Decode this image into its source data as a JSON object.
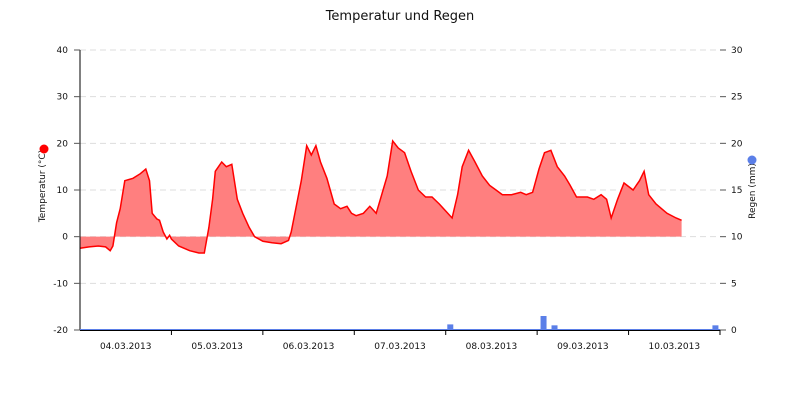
{
  "chart_data": {
    "type": "area",
    "title": "Temperatur und Regen",
    "xlabel": "",
    "x_categories": [
      "04.03.2013",
      "05.03.2013",
      "06.03.2013",
      "07.03.2013",
      "08.03.2013",
      "09.03.2013",
      "10.03.2013"
    ],
    "y_left": {
      "label": "Temperatur (°C)",
      "ticks": [
        40,
        30,
        20,
        10,
        0,
        -10,
        -20
      ],
      "range": [
        -20,
        40
      ],
      "legend_color": "#ff0000"
    },
    "y_right": {
      "label": "Regen (mm)",
      "ticks": [
        30,
        25,
        20,
        15,
        10,
        5,
        0
      ],
      "range": [
        0,
        30
      ],
      "legend_color": "#5b7fe8"
    },
    "grid": true,
    "series": [
      {
        "name": "Temperatur (°C)",
        "type": "area",
        "color": "#ff0000",
        "fill": "#ff7f7f",
        "axis": "left",
        "points_day_temp": [
          [
            0.0,
            -2.5
          ],
          [
            0.1,
            -2.2
          ],
          [
            0.2,
            -2.0
          ],
          [
            0.28,
            -2.2
          ],
          [
            0.33,
            -3.0
          ],
          [
            0.36,
            -2.0
          ],
          [
            0.4,
            3.0
          ],
          [
            0.44,
            6.0
          ],
          [
            0.49,
            12.0
          ],
          [
            0.58,
            12.5
          ],
          [
            0.66,
            13.5
          ],
          [
            0.72,
            14.5
          ],
          [
            0.76,
            12.0
          ],
          [
            0.79,
            5.0
          ],
          [
            0.84,
            3.8
          ],
          [
            0.87,
            3.5
          ],
          [
            0.91,
            1.0
          ],
          [
            0.95,
            -0.5
          ],
          [
            0.98,
            0.3
          ],
          [
            1.0,
            -0.5
          ],
          [
            1.08,
            -2.0
          ],
          [
            1.2,
            -3.0
          ],
          [
            1.3,
            -3.5
          ],
          [
            1.36,
            -3.5
          ],
          [
            1.41,
            2.0
          ],
          [
            1.45,
            8.0
          ],
          [
            1.48,
            14.0
          ],
          [
            1.55,
            16.0
          ],
          [
            1.6,
            15.0
          ],
          [
            1.66,
            15.5
          ],
          [
            1.72,
            8.0
          ],
          [
            1.78,
            5.0
          ],
          [
            1.85,
            2.0
          ],
          [
            1.91,
            0.0
          ],
          [
            2.0,
            -1.0
          ],
          [
            2.1,
            -1.3
          ],
          [
            2.2,
            -1.5
          ],
          [
            2.28,
            -0.8
          ],
          [
            2.31,
            1.0
          ],
          [
            2.36,
            6.0
          ],
          [
            2.42,
            12.0
          ],
          [
            2.48,
            19.5
          ],
          [
            2.53,
            17.5
          ],
          [
            2.58,
            19.5
          ],
          [
            2.63,
            16.0
          ],
          [
            2.7,
            12.5
          ],
          [
            2.78,
            7.0
          ],
          [
            2.85,
            6.0
          ],
          [
            2.92,
            6.5
          ],
          [
            2.97,
            5.0
          ],
          [
            3.02,
            4.5
          ],
          [
            3.1,
            5.0
          ],
          [
            3.17,
            6.5
          ],
          [
            3.24,
            5.0
          ],
          [
            3.3,
            9.0
          ],
          [
            3.36,
            13.0
          ],
          [
            3.42,
            20.5
          ],
          [
            3.48,
            19.0
          ],
          [
            3.55,
            18.0
          ],
          [
            3.62,
            14.0
          ],
          [
            3.7,
            10.0
          ],
          [
            3.78,
            8.5
          ],
          [
            3.85,
            8.5
          ],
          [
            3.93,
            7.0
          ],
          [
            4.0,
            5.5
          ],
          [
            4.07,
            4.0
          ],
          [
            4.13,
            9.0
          ],
          [
            4.18,
            15.0
          ],
          [
            4.25,
            18.5
          ],
          [
            4.32,
            16.0
          ],
          [
            4.4,
            13.0
          ],
          [
            4.48,
            11.0
          ],
          [
            4.55,
            10.0
          ],
          [
            4.62,
            9.0
          ],
          [
            4.72,
            9.0
          ],
          [
            4.82,
            9.5
          ],
          [
            4.88,
            9.0
          ],
          [
            4.95,
            9.5
          ],
          [
            5.02,
            14.5
          ],
          [
            5.08,
            18.0
          ],
          [
            5.15,
            18.5
          ],
          [
            5.22,
            15.0
          ],
          [
            5.3,
            13.0
          ],
          [
            5.36,
            11.0
          ],
          [
            5.43,
            8.5
          ],
          [
            5.55,
            8.5
          ],
          [
            5.62,
            8.0
          ],
          [
            5.7,
            9.0
          ],
          [
            5.76,
            8.0
          ],
          [
            5.81,
            4.0
          ],
          [
            5.88,
            8.0
          ],
          [
            5.95,
            11.5
          ],
          [
            6.05,
            10.0
          ],
          [
            6.12,
            12.0
          ],
          [
            6.17,
            14.0
          ],
          [
            6.22,
            9.0
          ],
          [
            6.3,
            7.0
          ],
          [
            6.42,
            5.0
          ],
          [
            6.52,
            4.0
          ],
          [
            6.58,
            3.5
          ]
        ]
      },
      {
        "name": "Regen (mm)",
        "type": "bar",
        "color": "#5b7fe8",
        "axis": "right",
        "bars_day_mm": [
          [
            4.05,
            0.6
          ],
          [
            5.07,
            1.5
          ],
          [
            5.19,
            0.5
          ],
          [
            6.95,
            0.5
          ]
        ]
      }
    ]
  }
}
